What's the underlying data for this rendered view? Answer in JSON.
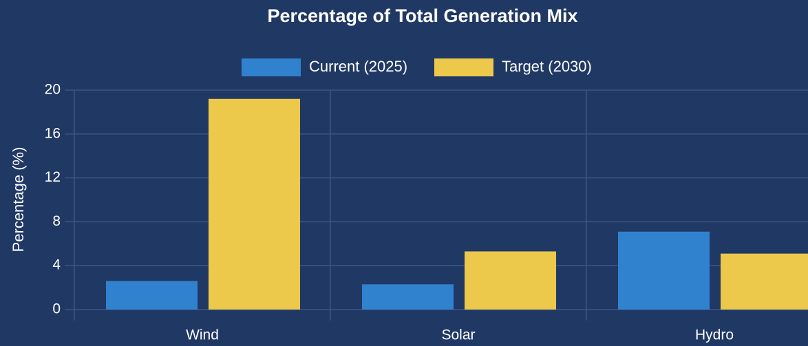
{
  "chart_data": {
    "type": "bar",
    "title": "Percentage of Total Generation Mix",
    "y_label": "Percentage (%)",
    "categories": [
      "Wind",
      "Solar",
      "Hydro"
    ],
    "series": [
      {
        "name": "Current (2025)",
        "color": "#3182ce",
        "values": [
          2.6,
          2.3,
          7.1
        ]
      },
      {
        "name": "Target (2030)",
        "color": "#ecc94b",
        "values": [
          19.2,
          5.3,
          5.1
        ]
      }
    ],
    "ylim": [
      0,
      20
    ],
    "yticks": [
      0,
      4,
      8,
      12,
      16,
      20
    ],
    "grid": true,
    "legend": "top"
  }
}
